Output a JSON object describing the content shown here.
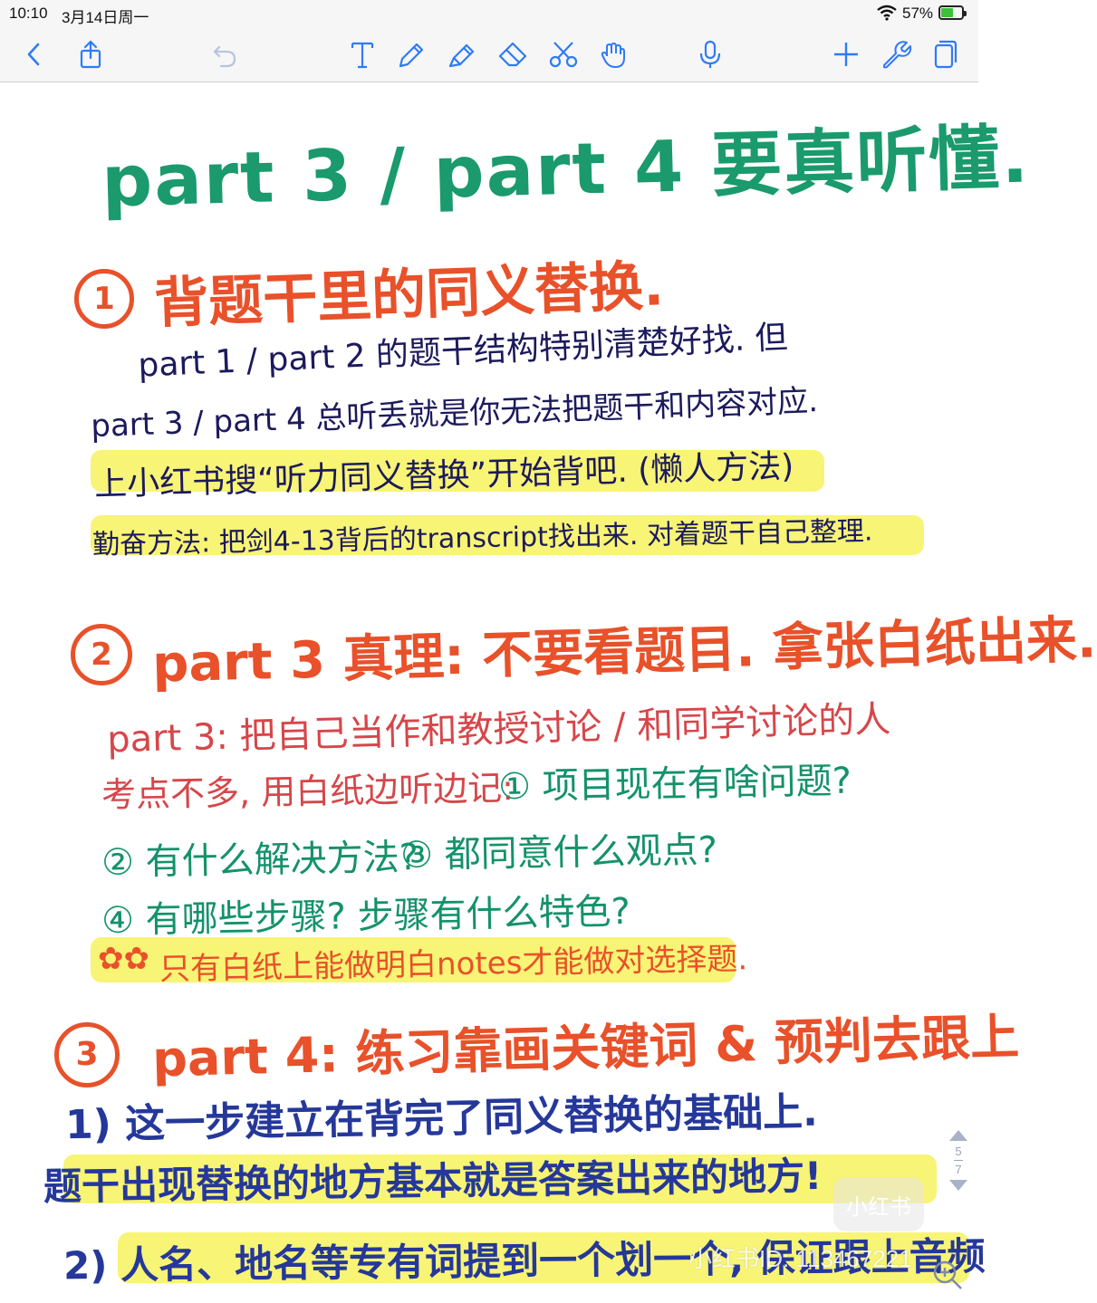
{
  "status_bar": {
    "time": "10:10",
    "date": "3月14日周一",
    "battery": "57%",
    "battery_level": 0.57
  },
  "toolbar": {
    "left_icons": [
      "back-icon",
      "share-icon",
      "undo-icon"
    ],
    "center_icons": [
      "text-tool-icon",
      "pen-icon",
      "highlighter-icon",
      "eraser-icon",
      "lasso-scissors-icon",
      "hand-icon"
    ],
    "right_icons": [
      "microphone-icon",
      "add-icon",
      "wrench-icon",
      "pages-icon"
    ]
  },
  "note": {
    "title": "part 3 / part 4 要真听懂.",
    "section1": {
      "number": "1",
      "heading": "背题干里的同义替换.",
      "line1": "part 1 / part 2 的题干结构特别清楚好找. 但",
      "line2": "part 3 / part 4 总听丢就是你无法把题干和内容对应.",
      "line3": "上小红书搜“听力同义替换”开始背吧. (懒人方法)",
      "line4": "勤奋方法: 把剑4-13背后的transcript找出来. 对着题干自己整理."
    },
    "section2": {
      "number": "2",
      "heading": "part 3 真理: 不要看题目. 拿张白纸出来.",
      "line1": "part 3: 把自己当作和教授讨论 / 和同学讨论的人",
      "line2": "考点不多, 用白纸边听边记:",
      "q1": "① 项目现在有啥问题?",
      "q2": "② 有什么解决方法?",
      "q3": "③ 都同意什么观点?",
      "q4": "④ 有哪些步骤? 步骤有什么特色?",
      "tip_icons": "✿✿",
      "tip": "只有白纸上能做明白notes才能做对选择题."
    },
    "section3": {
      "number": "3",
      "heading": "part 4: 练习靠画关键词 & 预判去跟上",
      "line1": "1) 这一步建立在背完了同义替换的基础上.",
      "line2": "题干出现替换的地方基本就是答案出来的地方!",
      "line3": "2) 人名、地名等专有词提到一个划一个, 保证跟上音频"
    }
  },
  "pager": {
    "current": "5",
    "total": "7"
  },
  "watermark": {
    "logo_text": "小红书",
    "text": "小红书ID: 113467221"
  }
}
